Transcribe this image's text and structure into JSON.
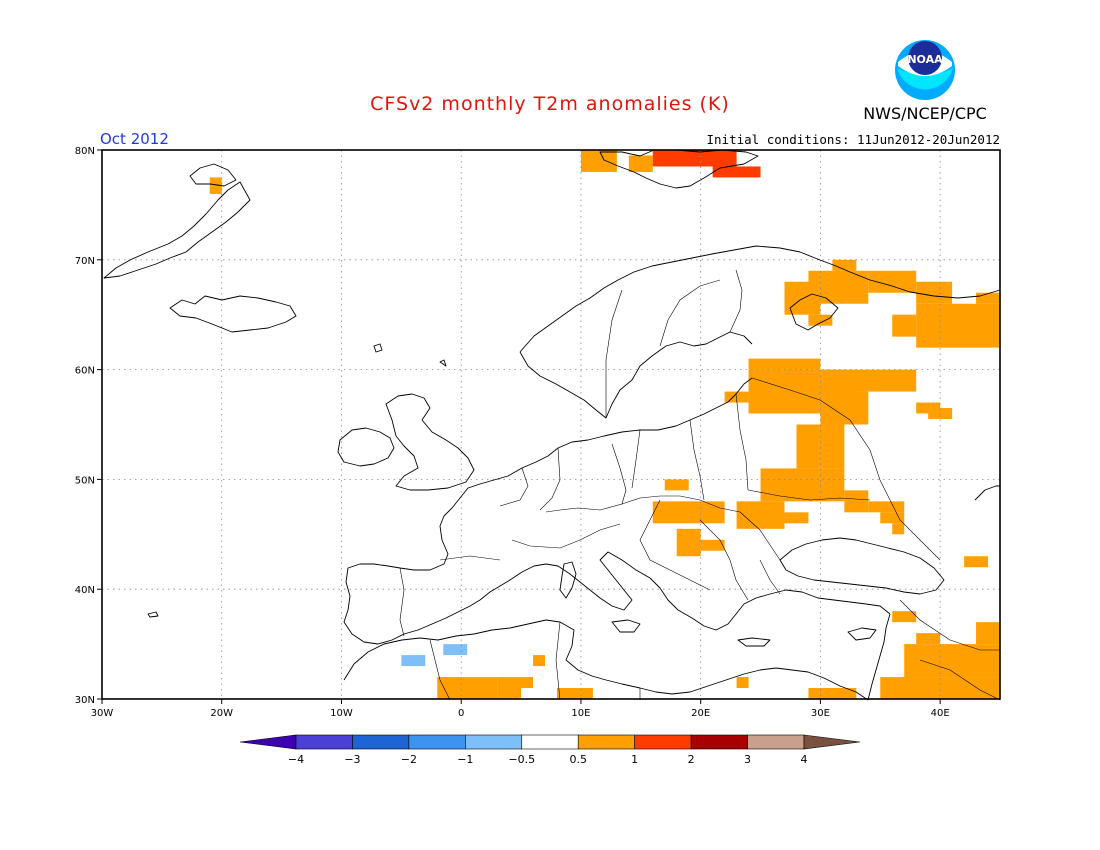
{
  "header": {
    "title": "CFSv2 monthly T2m anomalies (K)",
    "agency": "NWS/NCEP/CPC",
    "logo_text": "NOAA",
    "month": "Oct 2012",
    "initial_conditions": "Initial conditions: 11Jun2012-20Jun2012"
  },
  "map": {
    "lon_range": [
      -30,
      45
    ],
    "lat_range": [
      30,
      80
    ],
    "lon_ticks": [
      {
        "value": -30,
        "label": "30W"
      },
      {
        "value": -20,
        "label": "20W"
      },
      {
        "value": -10,
        "label": "10W"
      },
      {
        "value": 0,
        "label": "0"
      },
      {
        "value": 10,
        "label": "10E"
      },
      {
        "value": 20,
        "label": "20E"
      },
      {
        "value": 30,
        "label": "30E"
      },
      {
        "value": 40,
        "label": "40E"
      }
    ],
    "lat_ticks": [
      {
        "value": 30,
        "label": "30N"
      },
      {
        "value": 40,
        "label": "40N"
      },
      {
        "value": 50,
        "label": "50N"
      },
      {
        "value": 60,
        "label": "60N"
      },
      {
        "value": 70,
        "label": "70N"
      },
      {
        "value": 80,
        "label": "80N"
      }
    ],
    "grid": "dotted",
    "cell_size_deg": 1
  },
  "colorbar": {
    "boundaries": [
      "-4",
      "-3",
      "-2",
      "-1",
      "-0.5",
      "0.5",
      "1",
      "2",
      "3",
      "4"
    ],
    "colors": [
      "#3d00b0",
      "#4c3fd8",
      "#1e64d4",
      "#3c94f0",
      "#7fbff8",
      "#ffffff",
      "#ffa000",
      "#ff3c00",
      "#a80000",
      "#c8a08c",
      "#7a5040"
    ]
  },
  "chart_data": {
    "type": "heatmap",
    "value_unit": "K",
    "class_colors": {
      "c1": "#7fbff8",
      "w1": "#ffa000",
      "w2": "#ff3c00"
    },
    "cells": [
      {
        "class": "w1",
        "lon": [
          -21,
          -20
        ],
        "lat": [
          76,
          77.5
        ]
      },
      {
        "class": "w1",
        "lon": [
          10,
          13
        ],
        "lat": [
          78,
          80
        ]
      },
      {
        "class": "w1",
        "lon": [
          14,
          16
        ],
        "lat": [
          78,
          79.5
        ]
      },
      {
        "class": "w2",
        "lon": [
          16,
          23
        ],
        "lat": [
          78.5,
          80
        ]
      },
      {
        "class": "w2",
        "lon": [
          21,
          25
        ],
        "lat": [
          77.5,
          78.5
        ]
      },
      {
        "class": "w1",
        "lon": [
          27,
          30
        ],
        "lat": [
          65,
          68
        ]
      },
      {
        "class": "w1",
        "lon": [
          29,
          34
        ],
        "lat": [
          66,
          69
        ]
      },
      {
        "class": "w1",
        "lon": [
          31,
          33
        ],
        "lat": [
          69,
          70
        ]
      },
      {
        "class": "w1",
        "lon": [
          34,
          38
        ],
        "lat": [
          67,
          69
        ]
      },
      {
        "class": "w1",
        "lon": [
          38,
          41
        ],
        "lat": [
          66,
          68
        ]
      },
      {
        "class": "w1",
        "lon": [
          29,
          31
        ],
        "lat": [
          64,
          65
        ]
      },
      {
        "class": "w1",
        "lon": [
          36,
          38
        ],
        "lat": [
          63,
          65
        ]
      },
      {
        "class": "w1",
        "lon": [
          38,
          45
        ],
        "lat": [
          62,
          66
        ]
      },
      {
        "class": "w1",
        "lon": [
          43,
          45
        ],
        "lat": [
          66,
          67
        ]
      },
      {
        "class": "w1",
        "lon": [
          24,
          30
        ],
        "lat": [
          60,
          61
        ]
      },
      {
        "class": "w1",
        "lon": [
          24,
          33
        ],
        "lat": [
          56,
          60
        ]
      },
      {
        "class": "w1",
        "lon": [
          22,
          24
        ],
        "lat": [
          57,
          58
        ]
      },
      {
        "class": "w1",
        "lon": [
          30,
          38
        ],
        "lat": [
          58,
          60
        ]
      },
      {
        "class": "w1",
        "lon": [
          30,
          34
        ],
        "lat": [
          55,
          58
        ]
      },
      {
        "class": "w1",
        "lon": [
          28,
          32
        ],
        "lat": [
          51,
          55
        ]
      },
      {
        "class": "w1",
        "lon": [
          38,
          40
        ],
        "lat": [
          56,
          57
        ]
      },
      {
        "class": "w1",
        "lon": [
          39,
          41
        ],
        "lat": [
          55.5,
          56.5
        ]
      },
      {
        "class": "w1",
        "lon": [
          25,
          32
        ],
        "lat": [
          48,
          51
        ]
      },
      {
        "class": "w1",
        "lon": [
          32,
          34
        ],
        "lat": [
          47,
          49
        ]
      },
      {
        "class": "w1",
        "lon": [
          34,
          37
        ],
        "lat": [
          47,
          48
        ]
      },
      {
        "class": "w1",
        "lon": [
          35,
          37
        ],
        "lat": [
          46,
          47
        ]
      },
      {
        "class": "w1",
        "lon": [
          36,
          37
        ],
        "lat": [
          45,
          46
        ]
      },
      {
        "class": "w1",
        "lon": [
          17,
          19
        ],
        "lat": [
          49,
          50
        ]
      },
      {
        "class": "w1",
        "lon": [
          16,
          22
        ],
        "lat": [
          46,
          48
        ]
      },
      {
        "class": "w1",
        "lon": [
          23,
          27
        ],
        "lat": [
          45.5,
          48
        ]
      },
      {
        "class": "w1",
        "lon": [
          27,
          29
        ],
        "lat": [
          46,
          47
        ]
      },
      {
        "class": "w1",
        "lon": [
          18,
          20
        ],
        "lat": [
          43,
          45.5
        ]
      },
      {
        "class": "w1",
        "lon": [
          20,
          22
        ],
        "lat": [
          43.5,
          44.5
        ]
      },
      {
        "class": "w1",
        "lon": [
          42,
          44
        ],
        "lat": [
          42,
          43
        ]
      },
      {
        "class": "w1",
        "lon": [
          36,
          38
        ],
        "lat": [
          37,
          38
        ]
      },
      {
        "class": "w1",
        "lon": [
          38,
          40
        ],
        "lat": [
          35,
          36
        ]
      },
      {
        "class": "w1",
        "lon": [
          37,
          45
        ],
        "lat": [
          32,
          35
        ]
      },
      {
        "class": "w1",
        "lon": [
          43,
          45
        ],
        "lat": [
          35,
          37
        ]
      },
      {
        "class": "w1",
        "lon": [
          35,
          45
        ],
        "lat": [
          30,
          32
        ]
      },
      {
        "class": "w1",
        "lon": [
          29,
          33
        ],
        "lat": [
          30,
          31
        ]
      },
      {
        "class": "w1",
        "lon": [
          -2,
          3
        ],
        "lat": [
          30,
          32
        ]
      },
      {
        "class": "w1",
        "lon": [
          3,
          6
        ],
        "lat": [
          31,
          32
        ]
      },
      {
        "class": "w1",
        "lon": [
          3,
          5
        ],
        "lat": [
          30,
          31
        ]
      },
      {
        "class": "w1",
        "lon": [
          6,
          7
        ],
        "lat": [
          33,
          34
        ]
      },
      {
        "class": "w1",
        "lon": [
          8,
          11
        ],
        "lat": [
          30,
          31
        ]
      },
      {
        "class": "w1",
        "lon": [
          23,
          24
        ],
        "lat": [
          31,
          32
        ]
      },
      {
        "class": "c1",
        "lon": [
          -5,
          -3
        ],
        "lat": [
          33,
          34
        ]
      },
      {
        "class": "c1",
        "lon": [
          -1.5,
          0.5
        ],
        "lat": [
          34,
          35
        ]
      }
    ]
  }
}
